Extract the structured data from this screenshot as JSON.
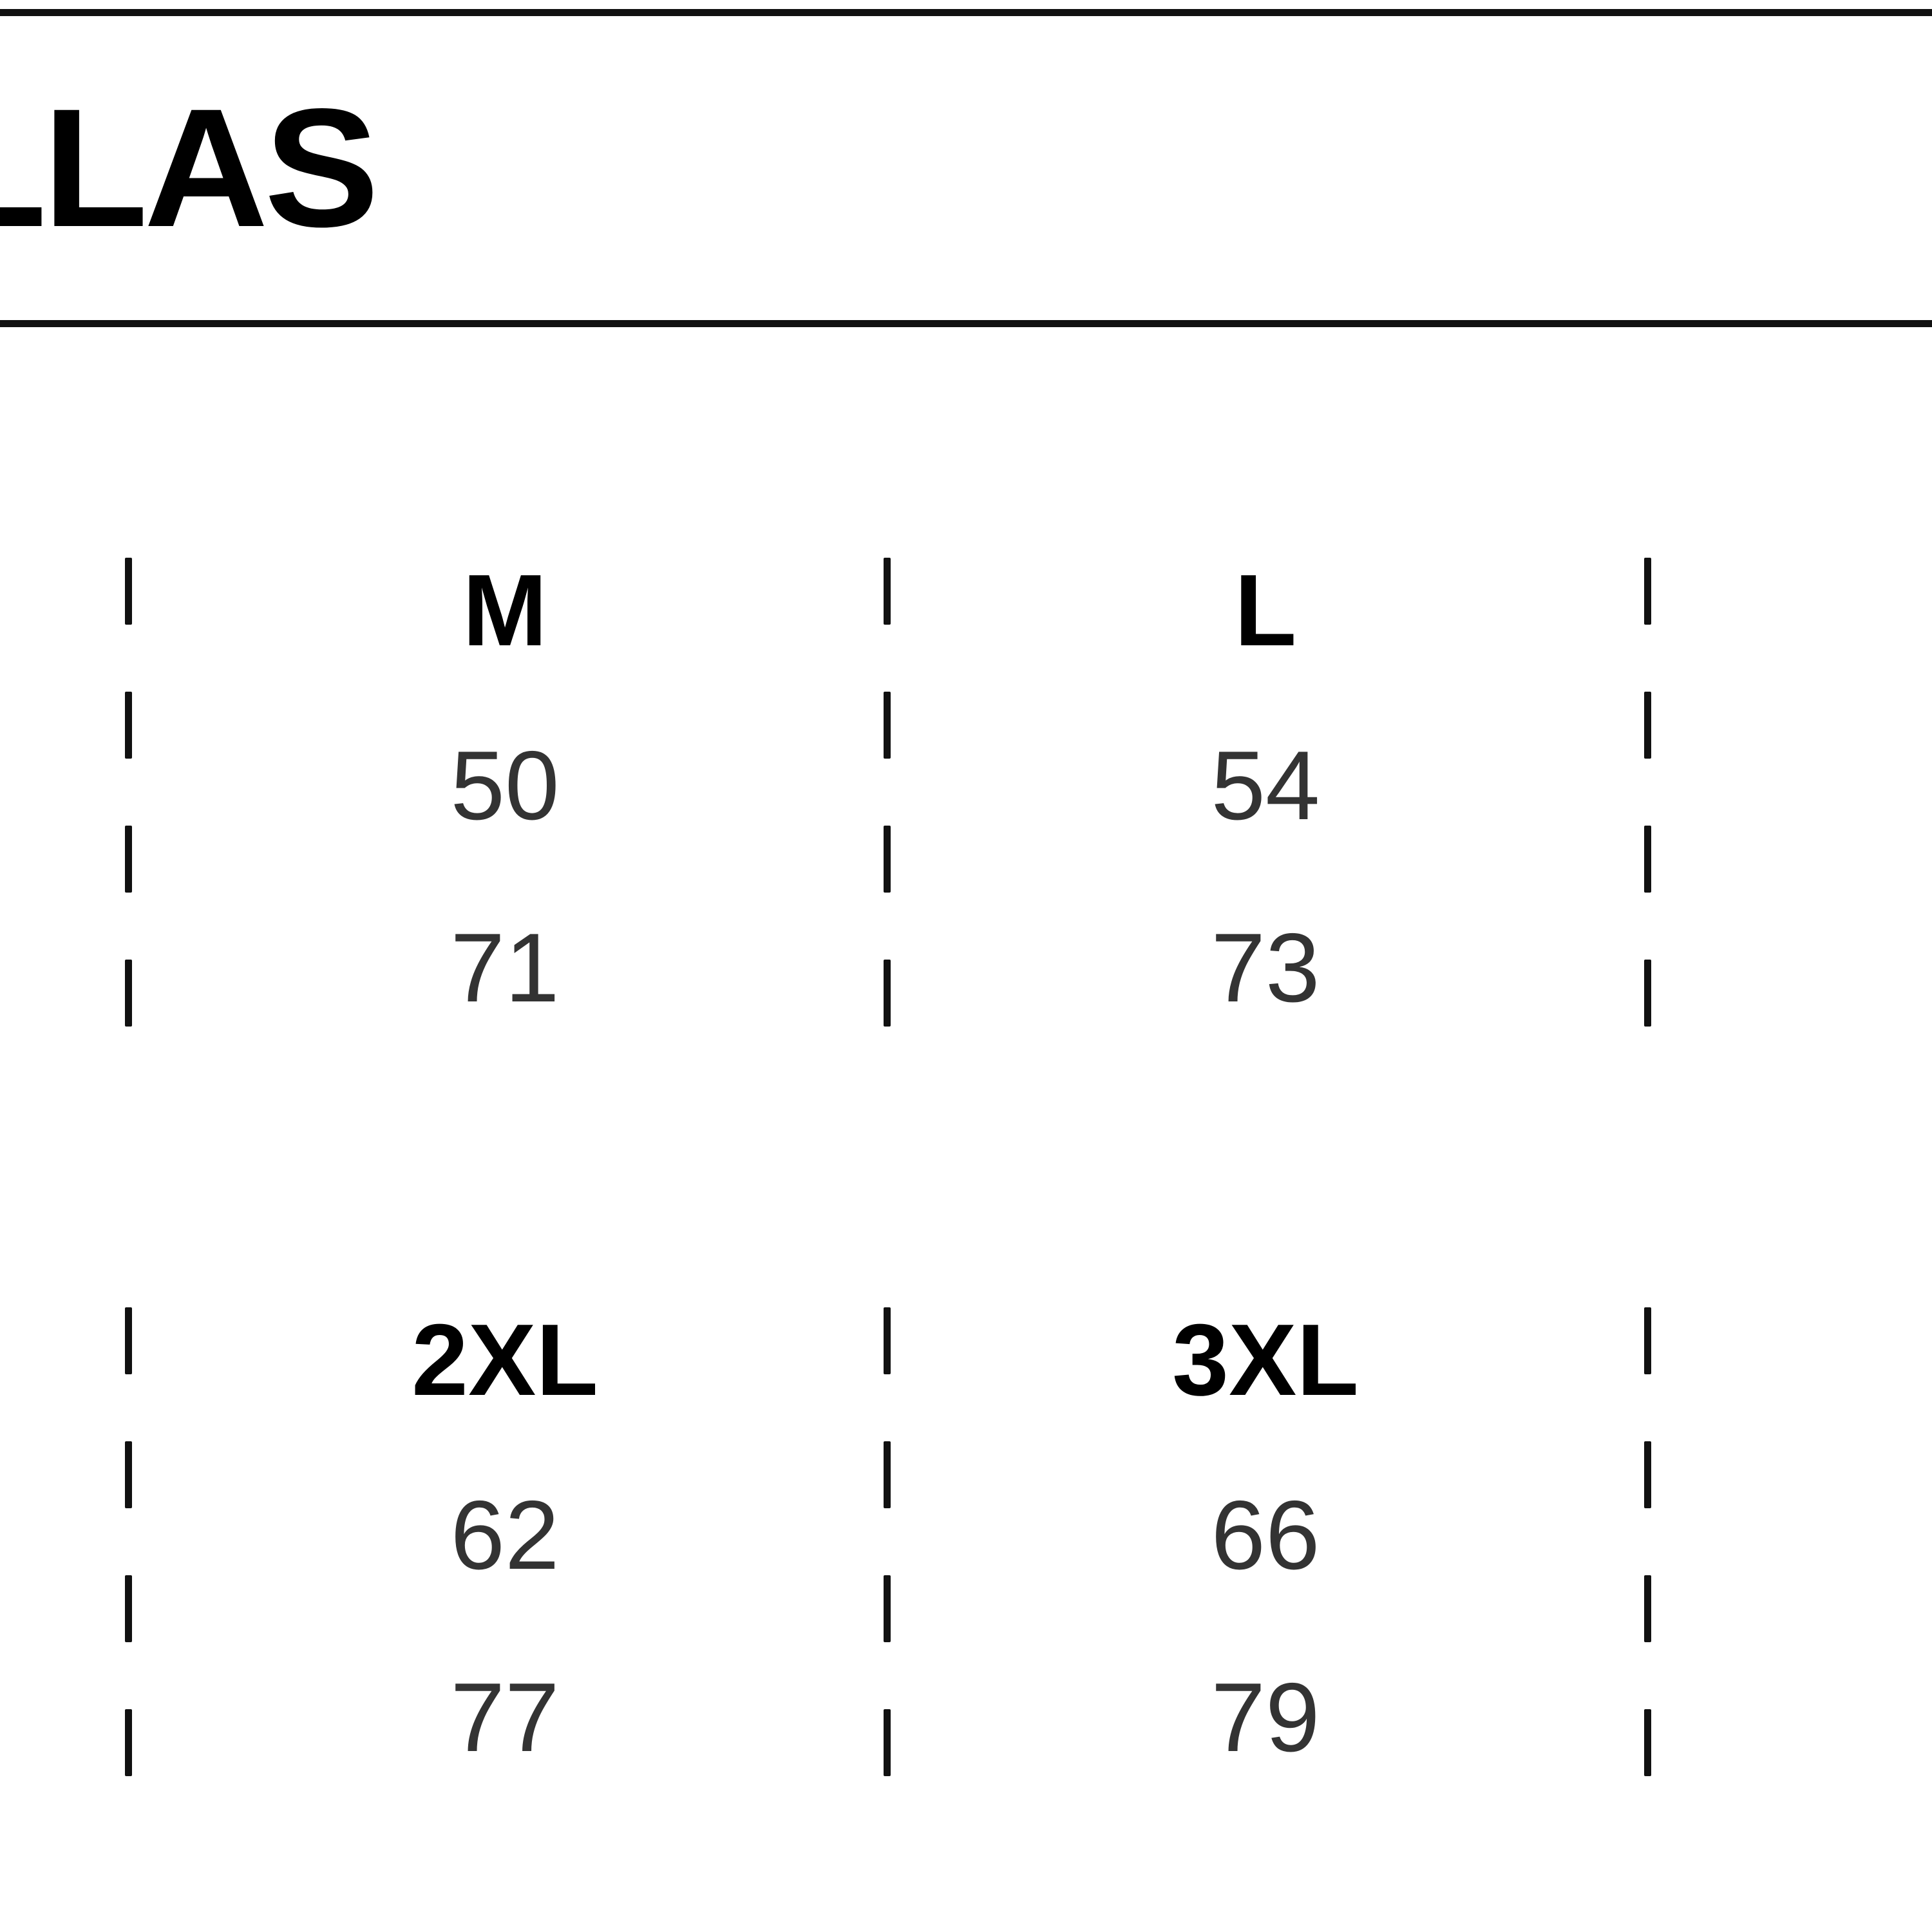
{
  "header": {
    "title": "LLAS"
  },
  "size_table": [
    {
      "sizes": [
        "M",
        "L"
      ],
      "rows": [
        [
          "50",
          "54"
        ],
        [
          "71",
          "73"
        ]
      ]
    },
    {
      "sizes": [
        "2XL",
        "3XL"
      ],
      "rows": [
        [
          "62",
          "66"
        ],
        [
          "77",
          "79"
        ]
      ]
    }
  ],
  "colors": {
    "text": "#000000",
    "values": "#333333",
    "rules": "#111111"
  }
}
